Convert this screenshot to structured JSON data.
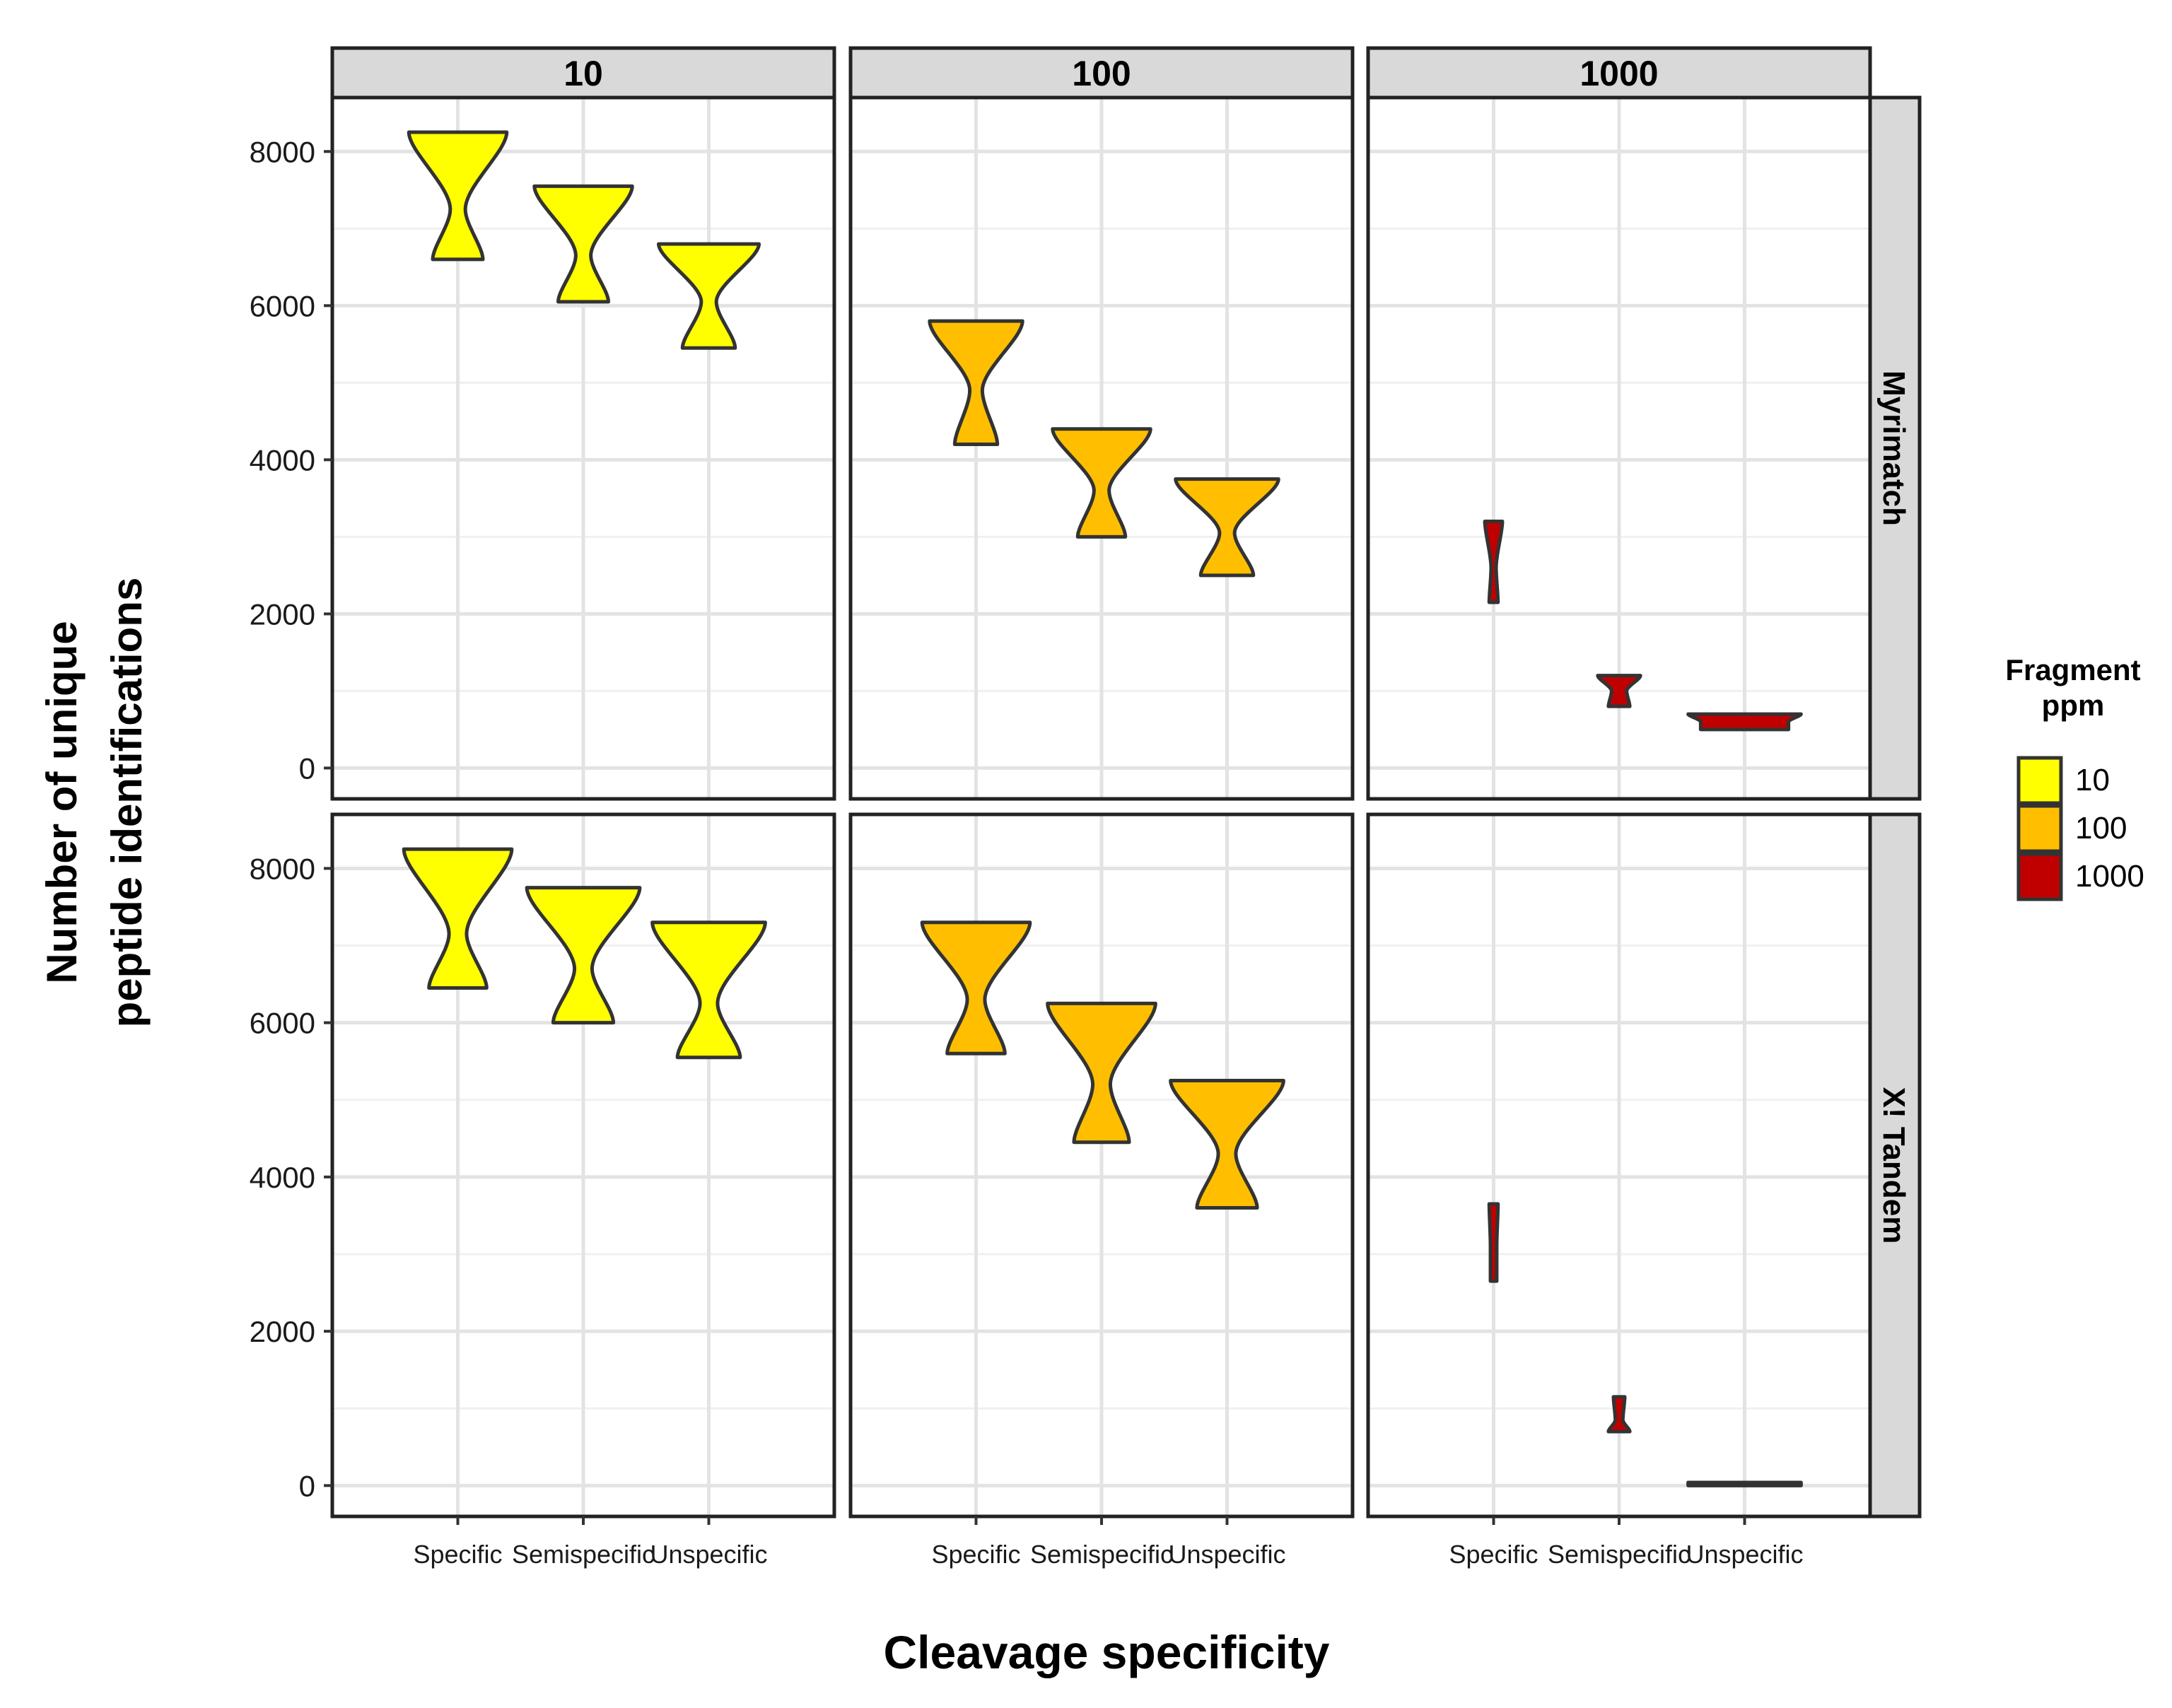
{
  "chart_data": {
    "type": "violin",
    "facet_columns": [
      "10",
      "100",
      "1000"
    ],
    "facet_rows": [
      "Myrimatch",
      "X! Tandem"
    ],
    "categories": [
      "Specific",
      "Semispecific",
      "Unspecific"
    ],
    "xlabel": "Cleavage specificity",
    "ylabel_lines": [
      "Number of unique",
      "peptide identifications"
    ],
    "ylim": [
      -400,
      8700
    ],
    "yticks": [
      0,
      2000,
      4000,
      6000,
      8000
    ],
    "grid": true,
    "legend": {
      "title_lines": [
        "Fragment",
        "ppm"
      ],
      "position": "right",
      "entries": [
        {
          "label": "10",
          "color": "#FFFF00"
        },
        {
          "label": "100",
          "color": "#FFBF00"
        },
        {
          "label": "1000",
          "color": "#C00000"
        }
      ]
    },
    "panels": [
      {
        "row": "Myrimatch",
        "col": "10",
        "fill": "#FFFF00",
        "violins": [
          {
            "category": "Specific",
            "min": 6600,
            "max": 8250,
            "waist": 7250,
            "top_width": 0.78,
            "bottom_width": 0.4,
            "waist_width": 0.12
          },
          {
            "category": "Semispecific",
            "min": 6050,
            "max": 7550,
            "waist": 6650,
            "top_width": 0.78,
            "bottom_width": 0.4,
            "waist_width": 0.12
          },
          {
            "category": "Unspecific",
            "min": 5450,
            "max": 6800,
            "waist": 6050,
            "top_width": 0.8,
            "bottom_width": 0.42,
            "waist_width": 0.12
          }
        ]
      },
      {
        "row": "Myrimatch",
        "col": "100",
        "fill": "#FFBF00",
        "violins": [
          {
            "category": "Specific",
            "min": 4200,
            "max": 5800,
            "waist": 4900,
            "top_width": 0.74,
            "bottom_width": 0.34,
            "waist_width": 0.1
          },
          {
            "category": "Semispecific",
            "min": 3000,
            "max": 4400,
            "waist": 3600,
            "top_width": 0.78,
            "bottom_width": 0.38,
            "waist_width": 0.12
          },
          {
            "category": "Unspecific",
            "min": 2500,
            "max": 3750,
            "waist": 3050,
            "top_width": 0.82,
            "bottom_width": 0.42,
            "waist_width": 0.12
          }
        ]
      },
      {
        "row": "Myrimatch",
        "col": "1000",
        "fill": "#C00000",
        "violins": [
          {
            "category": "Specific",
            "min": 2150,
            "max": 3200,
            "waist": 2600,
            "top_width": 0.14,
            "bottom_width": 0.07,
            "waist_width": 0.04
          },
          {
            "category": "Semispecific",
            "min": 800,
            "max": 1200,
            "waist": 1000,
            "top_width": 0.34,
            "bottom_width": 0.17,
            "waist_width": 0.12
          },
          {
            "category": "Unspecific",
            "min": 500,
            "max": 700,
            "waist": 600,
            "top_width": 0.9,
            "bottom_width": 0.7,
            "waist_width": 0.7
          }
        ]
      },
      {
        "row": "X! Tandem",
        "col": "10",
        "fill": "#FFFF00",
        "violins": [
          {
            "category": "Specific",
            "min": 6450,
            "max": 8250,
            "waist": 7150,
            "top_width": 0.86,
            "bottom_width": 0.46,
            "waist_width": 0.14
          },
          {
            "category": "Semispecific",
            "min": 6000,
            "max": 7750,
            "waist": 6700,
            "top_width": 0.9,
            "bottom_width": 0.48,
            "waist_width": 0.14
          },
          {
            "category": "Unspecific",
            "min": 5550,
            "max": 7300,
            "waist": 6250,
            "top_width": 0.9,
            "bottom_width": 0.5,
            "waist_width": 0.14
          }
        ]
      },
      {
        "row": "X! Tandem",
        "col": "100",
        "fill": "#FFBF00",
        "violins": [
          {
            "category": "Specific",
            "min": 5600,
            "max": 7300,
            "waist": 6300,
            "top_width": 0.86,
            "bottom_width": 0.46,
            "waist_width": 0.14
          },
          {
            "category": "Semispecific",
            "min": 4450,
            "max": 6250,
            "waist": 5200,
            "top_width": 0.86,
            "bottom_width": 0.44,
            "waist_width": 0.14
          },
          {
            "category": "Unspecific",
            "min": 3600,
            "max": 5250,
            "waist": 4300,
            "top_width": 0.9,
            "bottom_width": 0.48,
            "waist_width": 0.14
          }
        ]
      },
      {
        "row": "X! Tandem",
        "col": "1000",
        "fill": "#C00000",
        "violins": [
          {
            "category": "Specific",
            "min": 2650,
            "max": 3650,
            "waist": 3100,
            "top_width": 0.07,
            "bottom_width": 0.05,
            "waist_width": 0.05
          },
          {
            "category": "Semispecific",
            "min": 700,
            "max": 1150,
            "waist": 850,
            "top_width": 0.09,
            "bottom_width": 0.17,
            "waist_width": 0.06
          },
          {
            "category": "Unspecific",
            "min": 0,
            "max": 40,
            "waist": 20,
            "top_width": 0.9,
            "bottom_width": 0.9,
            "waist_width": 0.9
          }
        ]
      }
    ]
  }
}
